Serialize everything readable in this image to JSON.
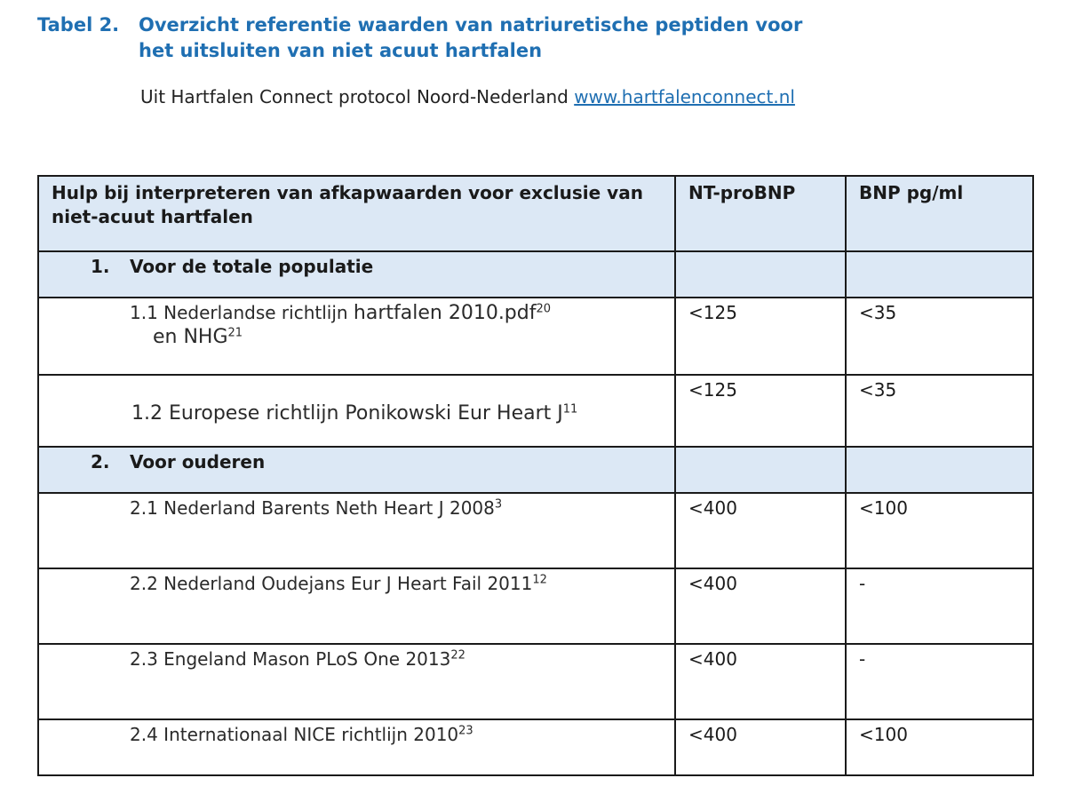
{
  "caption": {
    "label": "Tabel 2.",
    "line1": "Overzicht referentie waarden van natriuretische peptiden voor",
    "line2": "het uitsluiten van niet acuut hartfalen"
  },
  "source": {
    "text": "Uit Hartfalen Connect protocol Noord-Nederland",
    "link": "www.hartfalenconnect.nl"
  },
  "table": {
    "header": {
      "col1": "Hulp bij interpreteren van afkapwaarden voor exclusie van niet-acuut hartfalen",
      "col2": "NT-proBNP",
      "col3": "BNP pg/ml"
    },
    "section1": {
      "num": "1.",
      "label": "Voor de totale populatie"
    },
    "row11": {
      "prefix": "1.1 Nederlandse richtlijn",
      "big": "hartfalen 2010.pdf",
      "sup": "20",
      "line2": "en NHG",
      "sup2": "21",
      "nt": "<125",
      "bnp": "<35"
    },
    "row12": {
      "label": "1.2 Europese richtlijn Ponikowski Eur Heart J",
      "sup": "11",
      "nt": "<125",
      "bnp": "<35"
    },
    "section2": {
      "num": "2.",
      "label": "Voor ouderen"
    },
    "rows2": [
      {
        "label": "2.1 Nederland Barents Neth Heart J 2008",
        "sup": "3",
        "nt": "<400",
        "bnp": "<100"
      },
      {
        "label": "2.2 Nederland Oudejans Eur J Heart Fail 2011",
        "sup": "12",
        "nt": "<400",
        "bnp": "-"
      },
      {
        "label": "2.3 Engeland Mason PLoS One 2013",
        "sup": "22",
        "nt": "<400",
        "bnp": "-"
      },
      {
        "label": "2.4 Internationaal NICE richtlijn 2010",
        "sup": "23",
        "nt": "<400",
        "bnp": "<100"
      }
    ]
  }
}
